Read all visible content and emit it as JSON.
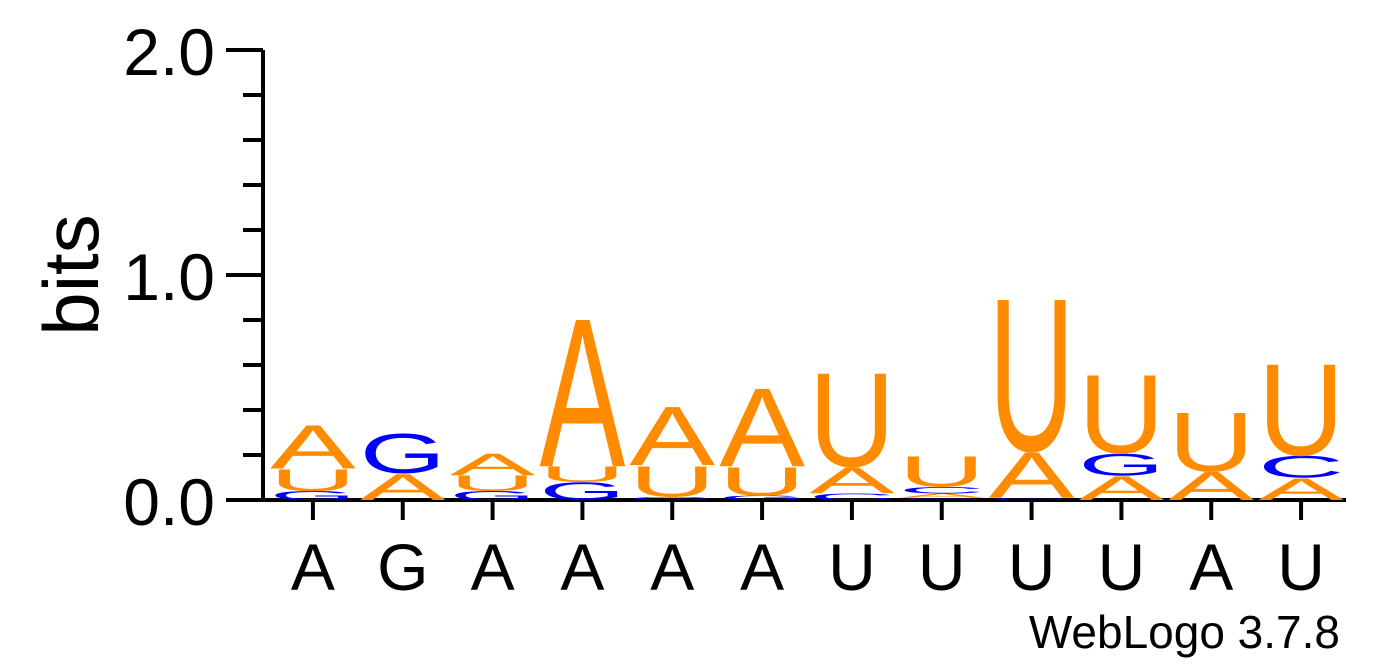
{
  "chart_data": {
    "type": "sequence-logo",
    "ylabel": "bits",
    "ylim": [
      0,
      2
    ],
    "y_ticks": [
      "0.0",
      "1.0",
      "2.0"
    ],
    "x_labels": [
      "A",
      "G",
      "A",
      "A",
      "A",
      "A",
      "U",
      "U",
      "U",
      "U",
      "A",
      "U"
    ],
    "colors": {
      "A": "#ff8c00",
      "U": "#ff8c00",
      "G": "#0000ff",
      "C": "#0000ff"
    },
    "positions": [
      [
        [
          "G",
          0.04
        ],
        [
          "U",
          0.1
        ],
        [
          "A",
          0.2
        ]
      ],
      [
        [
          "A",
          0.12
        ],
        [
          "G",
          0.18
        ]
      ],
      [
        [
          "G",
          0.04
        ],
        [
          "U",
          0.07
        ],
        [
          "A",
          0.1
        ]
      ],
      [
        [
          "G",
          0.08
        ],
        [
          "U",
          0.07
        ],
        [
          "A",
          0.68
        ]
      ],
      [
        [
          "G",
          0.015
        ],
        [
          "U",
          0.14
        ],
        [
          "A",
          0.27
        ]
      ],
      [
        [
          "G",
          0.02
        ],
        [
          "U",
          0.13
        ],
        [
          "A",
          0.36
        ]
      ],
      [
        [
          "C",
          0.03
        ],
        [
          "A",
          0.12
        ],
        [
          "U",
          0.43
        ]
      ],
      [
        [
          "G",
          0.01
        ],
        [
          "A",
          0.02
        ],
        [
          "C",
          0.03
        ],
        [
          "U",
          0.14
        ]
      ],
      [
        [
          "G",
          0.01
        ],
        [
          "A",
          0.21
        ],
        [
          "U",
          0.7
        ]
      ],
      [
        [
          "A",
          0.11
        ],
        [
          "G",
          0.1
        ],
        [
          "U",
          0.36
        ]
      ],
      [
        [
          "A",
          0.13
        ],
        [
          "U",
          0.27
        ]
      ],
      [
        [
          "A",
          0.1
        ],
        [
          "C",
          0.1
        ],
        [
          "U",
          0.42
        ]
      ]
    ]
  },
  "credit": "WebLogo 3.7.8"
}
